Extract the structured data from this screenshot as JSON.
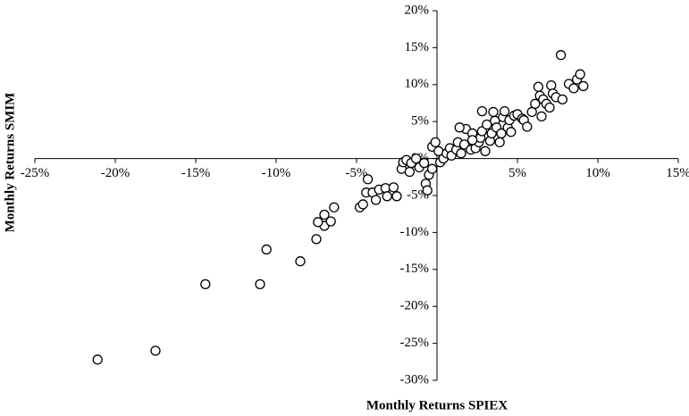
{
  "chart_data": {
    "type": "scatter",
    "xlabel": "Monthly Returns SPIEX",
    "ylabel": "Monthly Returns SMIM",
    "marker_color": "#ffffff",
    "marker_edge": "#000000",
    "xlim": [
      -25,
      15
    ],
    "ylim": [
      -30,
      20
    ],
    "xticks": [
      {
        "value": -25,
        "label": "-25%"
      },
      {
        "value": -20,
        "label": "-20%"
      },
      {
        "value": -15,
        "label": "-15%"
      },
      {
        "value": -10,
        "label": "-10%"
      },
      {
        "value": -5,
        "label": "-5%"
      },
      {
        "value": 5,
        "label": "5%"
      },
      {
        "value": 10,
        "label": "10%"
      },
      {
        "value": 15,
        "label": "15%"
      }
    ],
    "yticks": [
      {
        "value": -30,
        "label": "-30%"
      },
      {
        "value": -25,
        "label": "-25%"
      },
      {
        "value": -20,
        "label": "-20%"
      },
      {
        "value": -15,
        "label": "-15%"
      },
      {
        "value": -10,
        "label": "-10%"
      },
      {
        "value": -5,
        "label": "-5%"
      },
      {
        "value": 0,
        "label": "0%"
      },
      {
        "value": 5,
        "label": "5%"
      },
      {
        "value": 10,
        "label": "10%"
      },
      {
        "value": 15,
        "label": "15%"
      },
      {
        "value": 20,
        "label": "20%"
      }
    ],
    "x": [
      -21.1,
      -17.5,
      -14.4,
      -11.0,
      -10.6,
      -8.5,
      -7.5,
      -7.0,
      -6.4,
      -7.4,
      -7.0,
      -6.6,
      -4.8,
      -4.6,
      -4.4,
      -4.3,
      -4.0,
      -3.8,
      -3.6,
      -3.2,
      -3.1,
      -2.7,
      -2.5,
      -2.2,
      -2.1,
      -1.9,
      -1.7,
      -1.6,
      -1.3,
      -1.1,
      -0.8,
      -0.7,
      -0.6,
      -0.5,
      -0.3,
      -0.3,
      -0.1,
      0.1,
      0.2,
      0.4,
      0.6,
      0.8,
      0.9,
      1.2,
      1.3,
      1.5,
      1.7,
      1.8,
      2.1,
      2.2,
      2.4,
      2.6,
      2.7,
      2.8,
      3.0,
      3.1,
      3.3,
      3.4,
      3.6,
      3.7,
      3.9,
      4.0,
      4.1,
      4.2,
      4.4,
      4.5,
      4.6,
      4.8,
      5.0,
      5.3,
      5.4,
      5.6,
      5.9,
      6.1,
      6.3,
      6.4,
      6.5,
      6.6,
      6.8,
      7.0,
      7.1,
      7.2,
      7.4,
      7.7,
      7.8,
      8.2,
      8.5,
      8.7,
      8.9,
      9.1,
      2.8,
      3.5,
      1.4,
      2.2
    ],
    "values": [
      -27.2,
      -26.0,
      -17.0,
      -17.0,
      -12.3,
      -13.9,
      -10.9,
      -9.1,
      -6.6,
      -8.6,
      -7.6,
      -8.5,
      -6.6,
      -6.2,
      -4.6,
      -2.8,
      -4.6,
      -5.6,
      -4.2,
      -4.0,
      -5.1,
      -3.9,
      -5.1,
      -1.4,
      -0.5,
      -0.2,
      -1.8,
      -0.6,
      0,
      -1.2,
      -0.6,
      -3.4,
      -4.3,
      -2.2,
      -1.4,
      1.6,
      2.2,
      1.0,
      -0.5,
      0,
      0.7,
      1.4,
      0.4,
      1.2,
      2.2,
      0.7,
      1.9,
      4.0,
      1.2,
      3.4,
      1.4,
      2.2,
      2.8,
      3.7,
      1.0,
      4.6,
      2.4,
      3.4,
      5.1,
      4.2,
      2.2,
      3.4,
      5.6,
      6.4,
      4.2,
      5.2,
      3.6,
      5.8,
      6.0,
      5.4,
      5.2,
      4.3,
      6.3,
      7.4,
      9.7,
      8.5,
      5.7,
      8.0,
      7.4,
      6.9,
      9.9,
      8.8,
      8.3,
      14.0,
      8.0,
      10.1,
      9.5,
      10.7,
      11.4,
      9.8,
      6.4,
      6.3,
      4.2,
      2.5
    ]
  }
}
